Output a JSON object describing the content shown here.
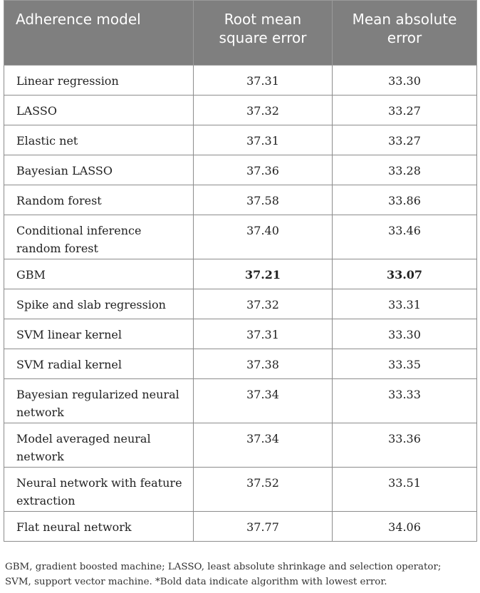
{
  "table": {
    "headers": {
      "model": "Adherence model",
      "rmse_line1": "Root mean",
      "rmse_line2": "square error",
      "mae_line1": "Mean absolute",
      "mae_line2": "error"
    },
    "rows": [
      {
        "name": "Linear regression",
        "rmse": "37.31",
        "mae": "33.30"
      },
      {
        "name": "LASSO",
        "rmse": "37.32",
        "mae": "33.27"
      },
      {
        "name": "Elastic net",
        "rmse": "37.31",
        "mae": "33.27"
      },
      {
        "name": "Bayesian LASSO",
        "rmse": "37.36",
        "mae": "33.28"
      },
      {
        "name": "Random forest",
        "rmse": "37.58",
        "mae": "33.86"
      },
      {
        "name_line1": "Conditional inference",
        "name_line2": "random forest",
        "rmse": "37.40",
        "mae": "33.46"
      },
      {
        "name": "GBM",
        "rmse": "37.21",
        "mae": "33.07"
      },
      {
        "name": "Spike and slab regression",
        "rmse": "37.32",
        "mae": "33.31"
      },
      {
        "name": "SVM linear kernel",
        "rmse": "37.31",
        "mae": "33.30"
      },
      {
        "name": "SVM radial kernel",
        "rmse": "37.38",
        "mae": "33.35"
      },
      {
        "name_line1": "Bayesian regularized neural",
        "name_line2": "network",
        "rmse": "37.34",
        "mae": "33.33"
      },
      {
        "name_line1": "Model averaged neural",
        "name_line2": "network",
        "rmse": "37.34",
        "mae": "33.36"
      },
      {
        "name_line1": "Neural network with feature",
        "name_line2": "extraction",
        "rmse": "37.52",
        "mae": "33.51"
      },
      {
        "name": "Flat neural network",
        "rmse": "37.77",
        "mae": "34.06"
      }
    ]
  },
  "footnote": {
    "line1": "GBM, gradient boosted machine; LASSO, least absolute shrinkage and selection operator;",
    "line2": "SVM, support vector machine. *Bold data indicate algorithm with lowest error."
  }
}
